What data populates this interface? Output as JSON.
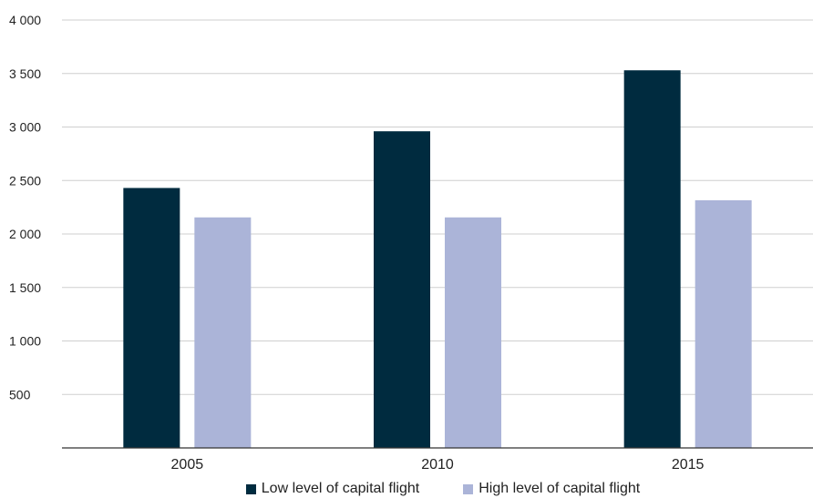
{
  "chart_data": {
    "type": "bar",
    "categories": [
      "2005",
      "2010",
      "2015"
    ],
    "series": [
      {
        "name": "Low level of capital flight",
        "values": [
          2430,
          2960,
          3530
        ],
        "color": "#002b3f"
      },
      {
        "name": "High level of capital flight",
        "values": [
          2155,
          2155,
          2315
        ],
        "color": "#abb4d8"
      }
    ],
    "ylim": [
      0,
      4000
    ],
    "yticks": [
      {
        "value": 500,
        "label": "500"
      },
      {
        "value": 1000,
        "label": "1 000"
      },
      {
        "value": 1500,
        "label": "1 500"
      },
      {
        "value": 2000,
        "label": "2 000"
      },
      {
        "value": 2500,
        "label": "2 500"
      },
      {
        "value": 3000,
        "label": "3 000"
      },
      {
        "value": 3500,
        "label": "3 500"
      },
      {
        "value": 4000,
        "label": "4 000"
      }
    ],
    "grid": true,
    "legend_position": "bottom"
  }
}
